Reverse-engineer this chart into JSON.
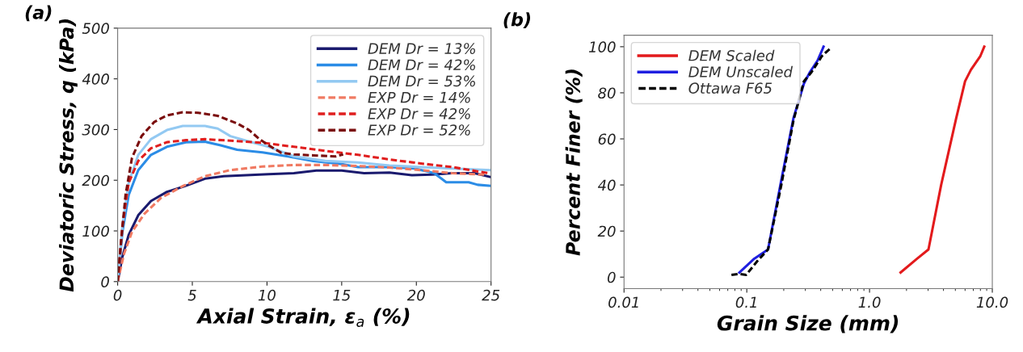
{
  "chart_data": [
    {
      "type": "line",
      "title": "(a)",
      "xlabel": "Axial Strain, ε$_{a}$ (%)",
      "ylabel": "Deviatoric Stress, q (kPa)",
      "xlim": [
        0,
        25
      ],
      "ylim": [
        0,
        500
      ],
      "xticks": [
        0,
        5,
        10,
        15,
        20,
        25
      ],
      "yticks": [
        0,
        100,
        200,
        300,
        400,
        500
      ],
      "grid": false,
      "legend": "top right",
      "series": [
        {
          "name": "DEM Dr = 13%",
          "color": "#1a1a6e",
          "line_style": "solid",
          "x": [
            0,
            0.32,
            0.74,
            1.38,
            2.23,
            3.3,
            4.57,
            5.85,
            7.1,
            8.6,
            10.1,
            11.8,
            13.3,
            15,
            16.5,
            18.2,
            19.7,
            21,
            22.4,
            23.9,
            25
          ],
          "values": [
            0,
            49,
            92,
            131,
            159,
            177,
            189,
            203,
            208,
            210,
            212,
            214,
            219,
            219,
            214,
            215,
            210,
            211,
            214,
            214,
            206
          ]
        },
        {
          "name": "DEM Dr = 42%",
          "color": "#2b8ce6",
          "line_style": "solid",
          "x": [
            0,
            0.32,
            0.74,
            1.38,
            2.23,
            3.3,
            4.57,
            5.85,
            6.9,
            8,
            9.7,
            11.4,
            13.1,
            15,
            16.1,
            18.2,
            19.9,
            21.2,
            22,
            23.5,
            24.1,
            25
          ],
          "values": [
            0,
            98,
            171,
            220,
            250,
            266,
            275,
            276,
            269,
            260,
            255,
            247,
            238,
            232,
            226,
            226,
            223,
            214,
            196,
            196,
            191,
            189
          ]
        },
        {
          "name": "DEM Dr = 53%",
          "color": "#93c9f2",
          "line_style": "solid",
          "x": [
            0,
            0.32,
            0.74,
            1.38,
            2.23,
            3.3,
            4.36,
            5.85,
            6.7,
            7.55,
            8.6,
            10.1,
            11.8,
            13.9,
            16.1,
            18.2,
            20.3,
            22.4,
            25
          ],
          "values": [
            0,
            110,
            195,
            250,
            281,
            299,
            307,
            307,
            302,
            287,
            278,
            266,
            247,
            238,
            235,
            229,
            226,
            223,
            220
          ]
        },
        {
          "name": "EXP Dr = 14%",
          "color": "#f07a62",
          "line_style": "dashed",
          "x": [
            0,
            0.43,
            0.96,
            1.8,
            2.9,
            4.4,
            5.85,
            7.55,
            9.7,
            11.8,
            13.9,
            16.1,
            18.2,
            20.3,
            22.4,
            24.6
          ],
          "values": [
            0,
            55,
            98,
            134,
            165,
            189,
            208,
            220,
            227,
            230,
            230,
            228,
            225,
            220,
            214,
            211
          ]
        },
        {
          "name": "EXP Dr = 42%",
          "color": "#e01e1e",
          "line_style": "dashed",
          "x": [
            0,
            0.32,
            0.74,
            1.38,
            2.23,
            3.3,
            4.57,
            5.85,
            7.55,
            9.7,
            11.8,
            13.9,
            16.1,
            18.2,
            20.3,
            22.4,
            24.8
          ],
          "values": [
            0,
            110,
            195,
            238,
            263,
            275,
            279,
            281,
            278,
            274,
            266,
            258,
            250,
            241,
            233,
            226,
            214
          ]
        },
        {
          "name": "EXP Dr = 52%",
          "color": "#7a0c0c",
          "line_style": "dashed",
          "x": [
            0,
            0.21,
            0.53,
            0.96,
            1.6,
            2.45,
            3.3,
            4.36,
            5.4,
            6.7,
            8,
            8.8,
            9.5,
            10.1,
            10.96,
            11.8,
            13.1,
            14.6,
            15.1
          ],
          "values": [
            0,
            73,
            171,
            244,
            287,
            315,
            328,
            334,
            333,
            327,
            312,
            299,
            281,
            269,
            254,
            251,
            249,
            247,
            251
          ]
        }
      ]
    },
    {
      "type": "line",
      "title": "(b)",
      "xlabel": "Grain Size (mm)",
      "ylabel": "Percent Finer (%)",
      "log": "x",
      "xlim": [
        0.01,
        10
      ],
      "ylim": [
        -5,
        105
      ],
      "xticks": [
        0.01,
        0.1,
        {
          "value": 1,
          "label": "1.0"
        },
        {
          "value": 10,
          "label": "10.0"
        }
      ],
      "yticks": [
        0,
        20,
        40,
        60,
        80,
        100
      ],
      "grid": false,
      "legend": "top left",
      "series": [
        {
          "name": "DEM Scaled",
          "color": "#e31a1c",
          "line_style": "solid",
          "x": [
            1.79,
            2.44,
            3.02,
            3.83,
            5.08,
            6.0,
            6.7,
            8.0,
            8.6
          ],
          "values": [
            2,
            8,
            12,
            40,
            69,
            85,
            90,
            96,
            100
          ]
        },
        {
          "name": "DEM Unscaled",
          "color": "#1f1fe0",
          "line_style": "solid",
          "x": [
            0.087,
            0.115,
            0.149,
            0.191,
            0.24,
            0.292,
            0.327,
            0.377,
            0.422
          ],
          "values": [
            2,
            8,
            12,
            42,
            69,
            84,
            89,
            94,
            100
          ]
        },
        {
          "name": "Ottawa F65",
          "color": "#000000",
          "line_style": "dashed",
          "x": [
            0.075,
            0.087,
            0.099,
            0.122,
            0.149,
            0.191,
            0.24,
            0.292,
            0.337,
            0.41,
            0.473
          ],
          "values": [
            1,
            1.4,
            1,
            7,
            12,
            40,
            68,
            85,
            89,
            96,
            99
          ]
        }
      ]
    }
  ]
}
